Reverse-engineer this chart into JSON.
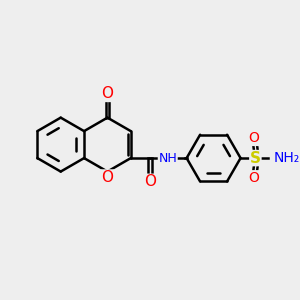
{
  "bg_color": "#eeeeee",
  "title": "",
  "atoms": {
    "colors": {
      "C": "#000000",
      "O": "#ff0000",
      "N": "#0000ff",
      "S": "#cccc00",
      "H": "#808080"
    }
  },
  "bond_color": "#000000",
  "bond_width": 1.8,
  "figsize": [
    3.0,
    3.0
  ],
  "dpi": 100
}
